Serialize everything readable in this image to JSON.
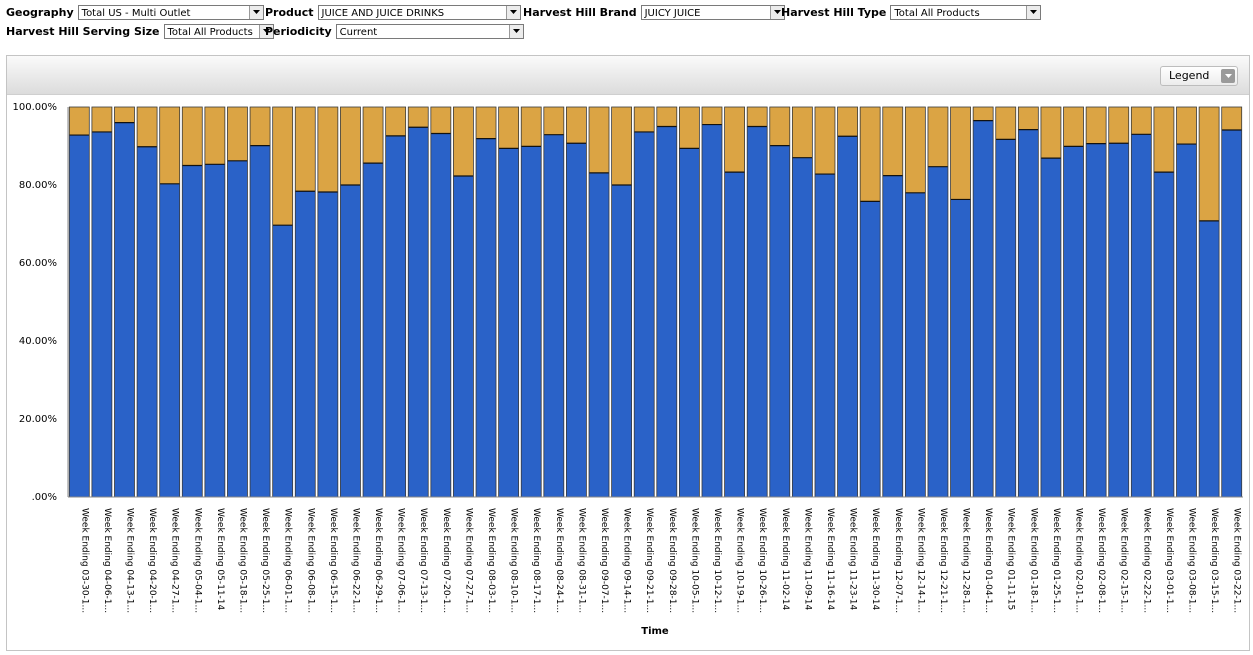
{
  "filters": {
    "geography": {
      "label": "Geography",
      "value": "Total US - Multi Outlet"
    },
    "product": {
      "label": "Product",
      "value": "JUICE AND JUICE DRINKS"
    },
    "brand": {
      "label": "Harvest Hill Brand",
      "value": "JUICY JUICE"
    },
    "type": {
      "label": "Harvest Hill Type",
      "value": "Total All Products"
    },
    "serving_size": {
      "label": "Harvest Hill Serving Size",
      "value": "Total All Products"
    },
    "periodicity": {
      "label": "Periodicity",
      "value": "Current"
    }
  },
  "legend_button": {
    "label": "Legend",
    "icon": "chevron-down-icon"
  },
  "colors": {
    "series_blue": "#2a62c8",
    "series_gold": "#dba444"
  },
  "chart_data": {
    "type": "bar",
    "stacked": true,
    "xlabel": "Time",
    "ylabel": "",
    "ylim": [
      0,
      100
    ],
    "yticks": [
      ".00%",
      "20.00%",
      "40.00%",
      "60.00%",
      "80.00%",
      "100.00%"
    ],
    "grid": false,
    "categories": [
      "Week Ending 03-30-1...",
      "Week Ending 04-06-1...",
      "Week Ending 04-13-1...",
      "Week Ending 04-20-1...",
      "Week Ending 04-27-1...",
      "Week Ending 05-04-1...",
      "Week Ending 05-11-14",
      "Week Ending 05-18-1...",
      "Week Ending 05-25-1...",
      "Week Ending 06-01-1...",
      "Week Ending 06-08-1...",
      "Week Ending 06-15-1...",
      "Week Ending 06-22-1...",
      "Week Ending 06-29-1...",
      "Week Ending 07-06-1...",
      "Week Ending 07-13-1...",
      "Week Ending 07-20-1...",
      "Week Ending 07-27-1...",
      "Week Ending 08-03-1...",
      "Week Ending 08-10-1...",
      "Week Ending 08-17-1...",
      "Week Ending 08-24-1...",
      "Week Ending 08-31-1...",
      "Week Ending 09-07-1...",
      "Week Ending 09-14-1...",
      "Week Ending 09-21-1...",
      "Week Ending 09-28-1...",
      "Week Ending 10-05-1...",
      "Week Ending 10-12-1...",
      "Week Ending 10-19-1...",
      "Week Ending 10-26-1...",
      "Week Ending 11-02-14",
      "Week Ending 11-09-14",
      "Week Ending 11-16-14",
      "Week Ending 11-23-14",
      "Week Ending 11-30-14",
      "Week Ending 12-07-1...",
      "Week Ending 12-14-1...",
      "Week Ending 12-21-1...",
      "Week Ending 12-28-1...",
      "Week Ending 01-04-1...",
      "Week Ending 01-11-15",
      "Week Ending 01-18-1...",
      "Week Ending 01-25-1...",
      "Week Ending 02-01-1...",
      "Week Ending 02-08-1...",
      "Week Ending 02-15-1...",
      "Week Ending 02-22-1...",
      "Week Ending 03-01-1...",
      "Week Ending 03-08-1...",
      "Week Ending 03-15-1...",
      "Week Ending 03-22-1..."
    ],
    "series": [
      {
        "values": [
          92.8,
          93.6,
          96.0,
          89.8,
          80.3,
          85.0,
          85.3,
          86.2,
          90.1,
          69.7,
          78.4,
          78.2,
          80.0,
          85.6,
          92.6,
          94.8,
          93.2,
          82.3,
          91.9,
          89.4,
          89.9,
          92.9,
          90.7,
          83.1,
          80.0,
          93.6,
          95.0,
          89.4,
          95.5,
          83.3,
          95.0,
          90.1,
          87.0,
          82.8,
          92.5,
          75.8,
          82.4,
          78.0,
          84.7,
          76.3,
          96.5,
          91.7,
          94.2,
          86.9,
          89.9,
          90.6,
          90.7,
          93.0,
          83.3,
          90.5,
          70.8,
          94.1
        ]
      },
      {
        "values": [
          7.2,
          6.4,
          4.0,
          10.2,
          19.7,
          15.0,
          14.7,
          13.8,
          9.9,
          30.3,
          21.6,
          21.8,
          20.0,
          14.4,
          7.4,
          5.2,
          6.8,
          17.7,
          8.1,
          10.6,
          10.1,
          7.1,
          9.3,
          16.9,
          20.0,
          6.4,
          5.0,
          10.6,
          4.5,
          16.7,
          5.0,
          9.9,
          13.0,
          17.2,
          7.5,
          24.2,
          17.6,
          22.0,
          15.3,
          23.7,
          3.5,
          8.3,
          5.8,
          13.1,
          10.1,
          9.4,
          9.3,
          7.0,
          16.7,
          9.5,
          29.2,
          5.9
        ]
      }
    ]
  }
}
